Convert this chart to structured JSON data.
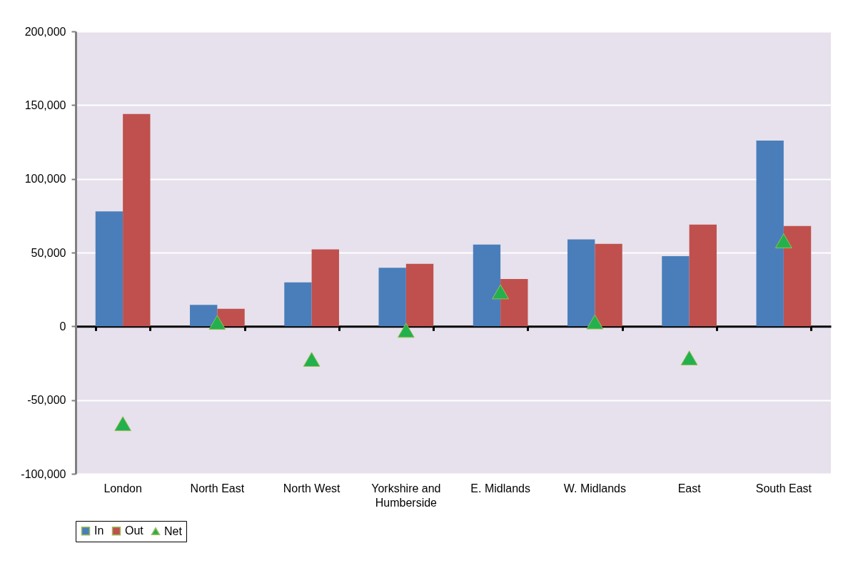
{
  "chart_data": {
    "type": "bar",
    "categories": [
      "London",
      "North East",
      "North West",
      "Yorkshire and Humberside",
      "E. Midlands",
      "W. Midlands",
      "East",
      "South East"
    ],
    "series": [
      {
        "name": "In",
        "color": "#4a7ebb",
        "values": [
          78000,
          14600,
          29800,
          39700,
          55500,
          58900,
          47600,
          126000
        ]
      },
      {
        "name": "Out",
        "color": "#c0504d",
        "values": [
          144000,
          11900,
          52200,
          42400,
          32100,
          55900,
          69000,
          68000
        ]
      },
      {
        "name": "Net",
        "type": "scatter",
        "marker": "triangle",
        "color": "#22b14c",
        "values": [
          -66000,
          2700,
          -22400,
          -2700,
          23400,
          3000,
          -21400,
          58000
        ]
      }
    ],
    "ylim": [
      -100000,
      200000
    ],
    "yticks": [
      {
        "value": -100000,
        "label": "-100,000"
      },
      {
        "value": -50000,
        "label": "-50,000"
      },
      0,
      {
        "value": 50000,
        "label": "50,000"
      },
      {
        "value": 100000,
        "label": "100,000"
      },
      {
        "value": 150000,
        "label": "150,000"
      },
      {
        "value": 200000,
        "label": "200,000"
      }
    ],
    "grid": "y",
    "legend": "bottom"
  }
}
